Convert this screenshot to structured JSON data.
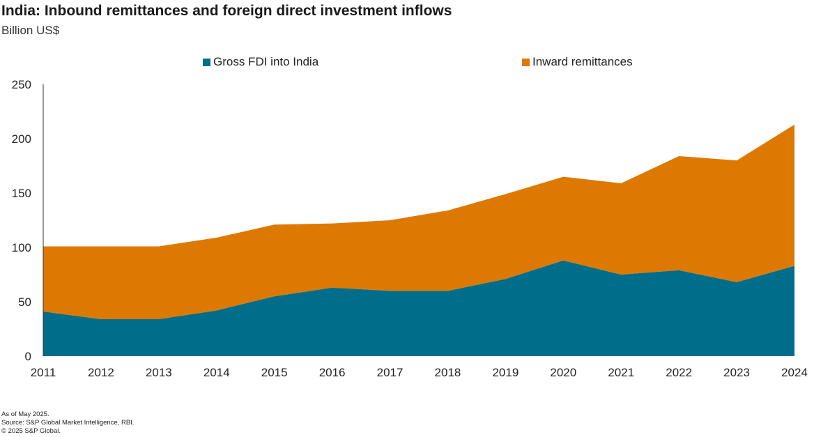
{
  "title": "India: Inbound remittances and foreign direct investment inflows",
  "subtitle": "Billion US$",
  "colors": {
    "fdi": "#006e8a",
    "remittances": "#dd7900",
    "axis": "#333333"
  },
  "chart_data": {
    "type": "area",
    "stacked": true,
    "title": "India: Inbound remittances and foreign direct investment inflows",
    "ylabel": "Billion US$",
    "ylim": [
      0,
      250
    ],
    "yticks": [
      "0",
      "50",
      "100",
      "150",
      "200",
      "250"
    ],
    "x": [
      "2011",
      "2012",
      "2013",
      "2014",
      "2015",
      "2016",
      "2017",
      "2018",
      "2019",
      "2020",
      "2021",
      "2022",
      "2023",
      "2024"
    ],
    "series": [
      {
        "name": "Gross FDI into India",
        "values": [
          41,
          34,
          34,
          42,
          55,
          63,
          60,
          60,
          71,
          88,
          75,
          79,
          68,
          83
        ]
      },
      {
        "name": "Inward remittances",
        "values": [
          60,
          67,
          67,
          67,
          66,
          59,
          65,
          74,
          78,
          77,
          84,
          105,
          112,
          130
        ]
      }
    ],
    "legend_position": "top",
    "grid": false
  },
  "footer": {
    "line1": "As of May 2025.",
    "line2": "Source: S&P Global Market Intelligence, RBI.",
    "line3": "© 2025 S&P Global."
  }
}
